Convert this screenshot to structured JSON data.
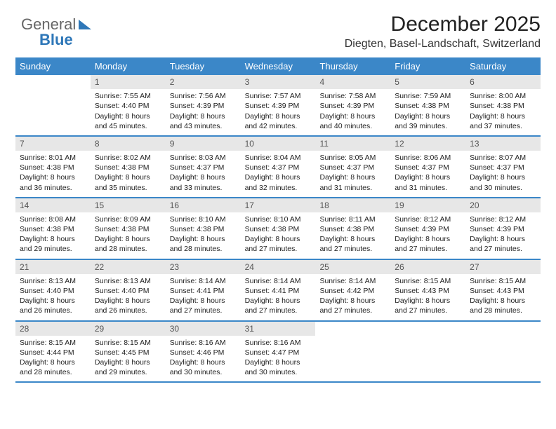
{
  "logo": {
    "part1": "General",
    "part2": "Blue"
  },
  "title": "December 2025",
  "location": "Diegten, Basel-Landschaft, Switzerland",
  "colors": {
    "header_bg": "#3b87c8",
    "header_text": "#ffffff",
    "daynum_bg": "#e7e7e7",
    "daynum_text": "#555555",
    "body_text": "#222222",
    "divider": "#3b87c8",
    "page_bg": "#ffffff",
    "logo_blue": "#2e77b8"
  },
  "weekday_labels": [
    "Sunday",
    "Monday",
    "Tuesday",
    "Wednesday",
    "Thursday",
    "Friday",
    "Saturday"
  ],
  "weeks": [
    [
      {
        "blank": true
      },
      {
        "num": "1",
        "sunrise": "Sunrise: 7:55 AM",
        "sunset": "Sunset: 4:40 PM",
        "dl1": "Daylight: 8 hours",
        "dl2": "and 45 minutes."
      },
      {
        "num": "2",
        "sunrise": "Sunrise: 7:56 AM",
        "sunset": "Sunset: 4:39 PM",
        "dl1": "Daylight: 8 hours",
        "dl2": "and 43 minutes."
      },
      {
        "num": "3",
        "sunrise": "Sunrise: 7:57 AM",
        "sunset": "Sunset: 4:39 PM",
        "dl1": "Daylight: 8 hours",
        "dl2": "and 42 minutes."
      },
      {
        "num": "4",
        "sunrise": "Sunrise: 7:58 AM",
        "sunset": "Sunset: 4:39 PM",
        "dl1": "Daylight: 8 hours",
        "dl2": "and 40 minutes."
      },
      {
        "num": "5",
        "sunrise": "Sunrise: 7:59 AM",
        "sunset": "Sunset: 4:38 PM",
        "dl1": "Daylight: 8 hours",
        "dl2": "and 39 minutes."
      },
      {
        "num": "6",
        "sunrise": "Sunrise: 8:00 AM",
        "sunset": "Sunset: 4:38 PM",
        "dl1": "Daylight: 8 hours",
        "dl2": "and 37 minutes."
      }
    ],
    [
      {
        "num": "7",
        "sunrise": "Sunrise: 8:01 AM",
        "sunset": "Sunset: 4:38 PM",
        "dl1": "Daylight: 8 hours",
        "dl2": "and 36 minutes."
      },
      {
        "num": "8",
        "sunrise": "Sunrise: 8:02 AM",
        "sunset": "Sunset: 4:38 PM",
        "dl1": "Daylight: 8 hours",
        "dl2": "and 35 minutes."
      },
      {
        "num": "9",
        "sunrise": "Sunrise: 8:03 AM",
        "sunset": "Sunset: 4:37 PM",
        "dl1": "Daylight: 8 hours",
        "dl2": "and 33 minutes."
      },
      {
        "num": "10",
        "sunrise": "Sunrise: 8:04 AM",
        "sunset": "Sunset: 4:37 PM",
        "dl1": "Daylight: 8 hours",
        "dl2": "and 32 minutes."
      },
      {
        "num": "11",
        "sunrise": "Sunrise: 8:05 AM",
        "sunset": "Sunset: 4:37 PM",
        "dl1": "Daylight: 8 hours",
        "dl2": "and 31 minutes."
      },
      {
        "num": "12",
        "sunrise": "Sunrise: 8:06 AM",
        "sunset": "Sunset: 4:37 PM",
        "dl1": "Daylight: 8 hours",
        "dl2": "and 31 minutes."
      },
      {
        "num": "13",
        "sunrise": "Sunrise: 8:07 AM",
        "sunset": "Sunset: 4:37 PM",
        "dl1": "Daylight: 8 hours",
        "dl2": "and 30 minutes."
      }
    ],
    [
      {
        "num": "14",
        "sunrise": "Sunrise: 8:08 AM",
        "sunset": "Sunset: 4:38 PM",
        "dl1": "Daylight: 8 hours",
        "dl2": "and 29 minutes."
      },
      {
        "num": "15",
        "sunrise": "Sunrise: 8:09 AM",
        "sunset": "Sunset: 4:38 PM",
        "dl1": "Daylight: 8 hours",
        "dl2": "and 28 minutes."
      },
      {
        "num": "16",
        "sunrise": "Sunrise: 8:10 AM",
        "sunset": "Sunset: 4:38 PM",
        "dl1": "Daylight: 8 hours",
        "dl2": "and 28 minutes."
      },
      {
        "num": "17",
        "sunrise": "Sunrise: 8:10 AM",
        "sunset": "Sunset: 4:38 PM",
        "dl1": "Daylight: 8 hours",
        "dl2": "and 27 minutes."
      },
      {
        "num": "18",
        "sunrise": "Sunrise: 8:11 AM",
        "sunset": "Sunset: 4:38 PM",
        "dl1": "Daylight: 8 hours",
        "dl2": "and 27 minutes."
      },
      {
        "num": "19",
        "sunrise": "Sunrise: 8:12 AM",
        "sunset": "Sunset: 4:39 PM",
        "dl1": "Daylight: 8 hours",
        "dl2": "and 27 minutes."
      },
      {
        "num": "20",
        "sunrise": "Sunrise: 8:12 AM",
        "sunset": "Sunset: 4:39 PM",
        "dl1": "Daylight: 8 hours",
        "dl2": "and 27 minutes."
      }
    ],
    [
      {
        "num": "21",
        "sunrise": "Sunrise: 8:13 AM",
        "sunset": "Sunset: 4:40 PM",
        "dl1": "Daylight: 8 hours",
        "dl2": "and 26 minutes."
      },
      {
        "num": "22",
        "sunrise": "Sunrise: 8:13 AM",
        "sunset": "Sunset: 4:40 PM",
        "dl1": "Daylight: 8 hours",
        "dl2": "and 26 minutes."
      },
      {
        "num": "23",
        "sunrise": "Sunrise: 8:14 AM",
        "sunset": "Sunset: 4:41 PM",
        "dl1": "Daylight: 8 hours",
        "dl2": "and 27 minutes."
      },
      {
        "num": "24",
        "sunrise": "Sunrise: 8:14 AM",
        "sunset": "Sunset: 4:41 PM",
        "dl1": "Daylight: 8 hours",
        "dl2": "and 27 minutes."
      },
      {
        "num": "25",
        "sunrise": "Sunrise: 8:14 AM",
        "sunset": "Sunset: 4:42 PM",
        "dl1": "Daylight: 8 hours",
        "dl2": "and 27 minutes."
      },
      {
        "num": "26",
        "sunrise": "Sunrise: 8:15 AM",
        "sunset": "Sunset: 4:43 PM",
        "dl1": "Daylight: 8 hours",
        "dl2": "and 27 minutes."
      },
      {
        "num": "27",
        "sunrise": "Sunrise: 8:15 AM",
        "sunset": "Sunset: 4:43 PM",
        "dl1": "Daylight: 8 hours",
        "dl2": "and 28 minutes."
      }
    ],
    [
      {
        "num": "28",
        "sunrise": "Sunrise: 8:15 AM",
        "sunset": "Sunset: 4:44 PM",
        "dl1": "Daylight: 8 hours",
        "dl2": "and 28 minutes."
      },
      {
        "num": "29",
        "sunrise": "Sunrise: 8:15 AM",
        "sunset": "Sunset: 4:45 PM",
        "dl1": "Daylight: 8 hours",
        "dl2": "and 29 minutes."
      },
      {
        "num": "30",
        "sunrise": "Sunrise: 8:16 AM",
        "sunset": "Sunset: 4:46 PM",
        "dl1": "Daylight: 8 hours",
        "dl2": "and 30 minutes."
      },
      {
        "num": "31",
        "sunrise": "Sunrise: 8:16 AM",
        "sunset": "Sunset: 4:47 PM",
        "dl1": "Daylight: 8 hours",
        "dl2": "and 30 minutes."
      },
      {
        "blank": true
      },
      {
        "blank": true
      },
      {
        "blank": true
      }
    ]
  ]
}
